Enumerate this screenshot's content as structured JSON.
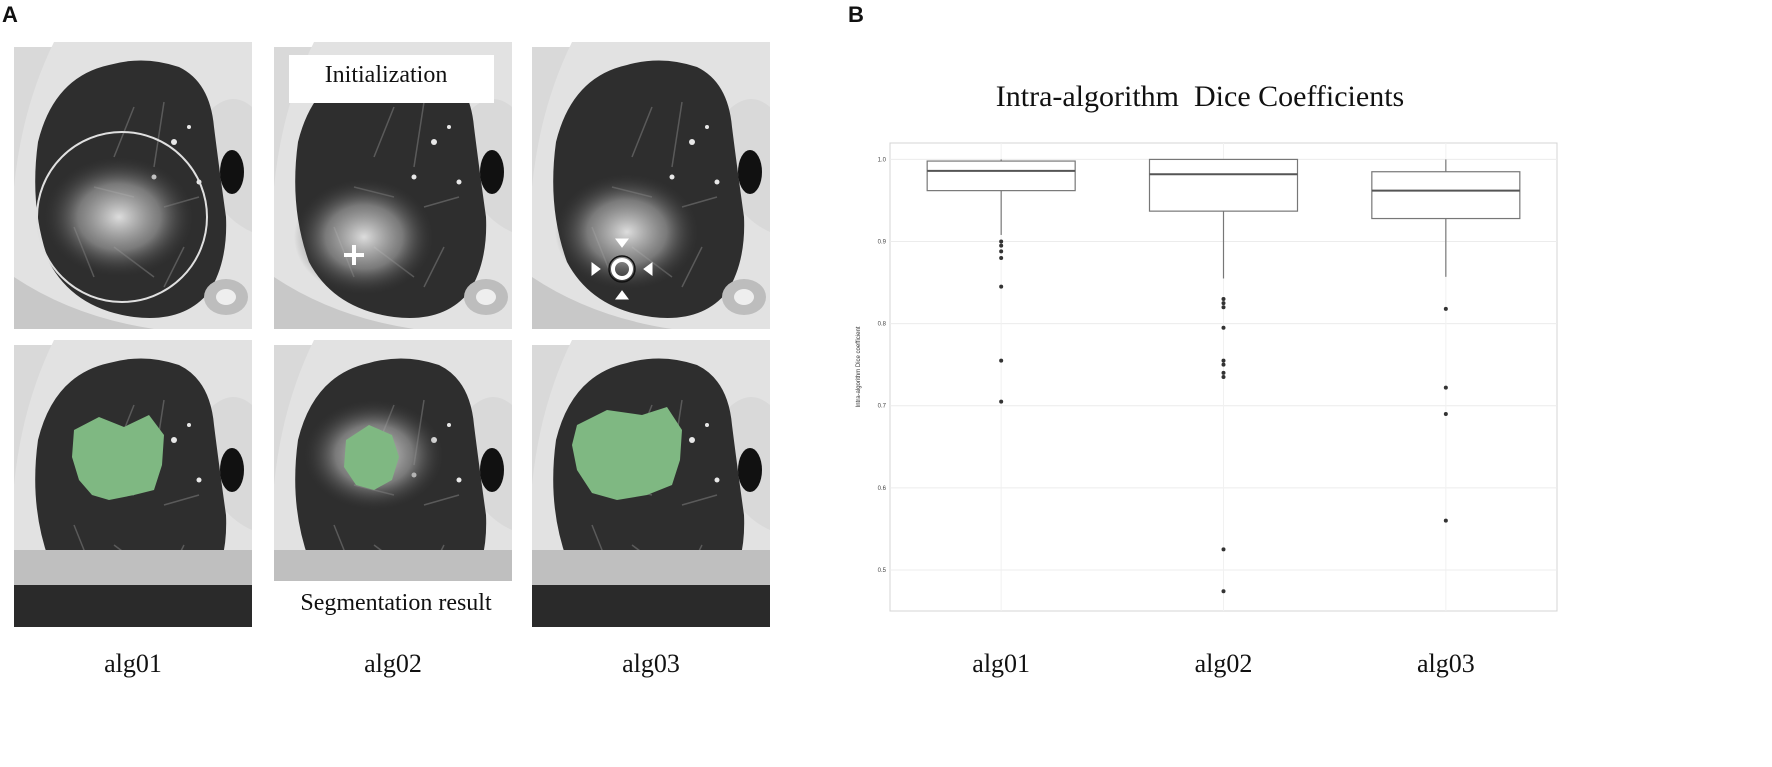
{
  "panels": {
    "a_label": "A",
    "b_label": "B"
  },
  "ct_panel": {
    "columns": [
      "alg01",
      "alg02",
      "alg03"
    ],
    "initialization_label": "Initialization",
    "segmentation_label": "Segmentation result",
    "colors": {
      "segmentation_fill": "#7fb882",
      "lung_dark": "#2b2b2b",
      "tissue_light": "#d8d8d8"
    },
    "init_markers": [
      "circle-roi-icon",
      "crosshair-icon",
      "target-arrows-icon"
    ]
  },
  "chart_data": {
    "type": "box",
    "title": "Intra-algorithm  Dice Coefficients",
    "xlabel": "",
    "ylabel": "Intra-algorithm Dice coefficient",
    "categories": [
      "alg01",
      "alg02",
      "alg03"
    ],
    "ylim": [
      0.45,
      1.02
    ],
    "yticks": [
      0.5,
      0.6,
      0.7,
      0.8,
      0.9,
      1.0
    ],
    "ytick_labels": [
      "0.5",
      "0.6",
      "0.7",
      "0.8",
      "0.9",
      "1.0"
    ],
    "grid": true,
    "boxes": [
      {
        "name": "alg01",
        "q1": 0.962,
        "median": 0.986,
        "q3": 0.998,
        "whisker_low": 0.908,
        "whisker_high": 1.0,
        "outliers": [
          0.9,
          0.895,
          0.888,
          0.88,
          0.845,
          0.755,
          0.705
        ]
      },
      {
        "name": "alg02",
        "q1": 0.937,
        "median": 0.982,
        "q3": 1.0,
        "whisker_low": 0.855,
        "whisker_high": 1.0,
        "outliers": [
          0.83,
          0.825,
          0.82,
          0.795,
          0.755,
          0.75,
          0.74,
          0.735,
          0.525,
          0.474
        ]
      },
      {
        "name": "alg03",
        "q1": 0.928,
        "median": 0.962,
        "q3": 0.985,
        "whisker_low": 0.857,
        "whisker_high": 1.0,
        "outliers": [
          0.818,
          0.722,
          0.69,
          0.56
        ]
      }
    ]
  }
}
